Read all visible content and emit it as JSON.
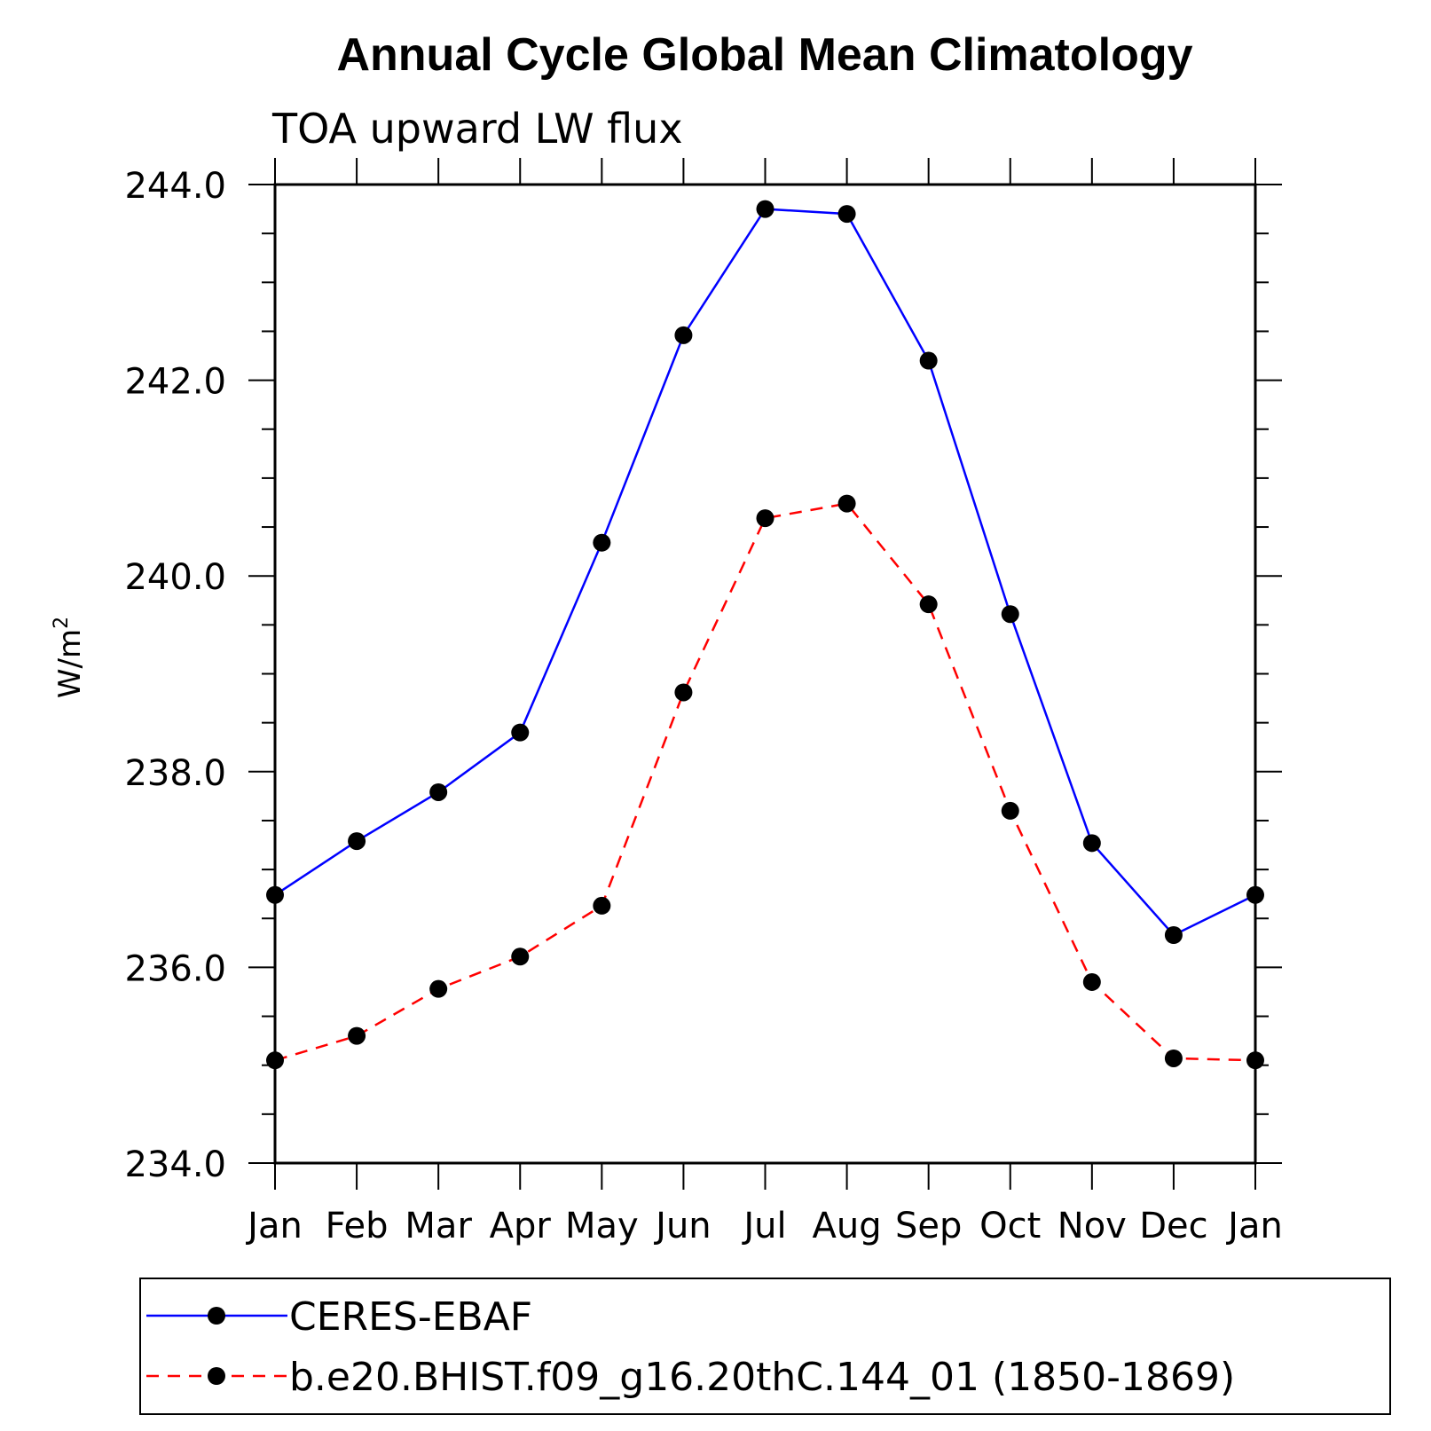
{
  "chart_data": {
    "type": "line",
    "title": "Annual Cycle Global Mean Climatology",
    "subtitle": "TOA upward LW flux",
    "xlabel": "",
    "ylabel": "W/m",
    "ylabel_sup": "2",
    "categories": [
      "Jan",
      "Feb",
      "Mar",
      "Apr",
      "May",
      "Jun",
      "Jul",
      "Aug",
      "Sep",
      "Oct",
      "Nov",
      "Dec",
      "Jan"
    ],
    "ylim": [
      234.0,
      244.0
    ],
    "yticks_major": [
      "234.0",
      "236.0",
      "238.0",
      "240.0",
      "242.0",
      "244.0"
    ],
    "ytick_values": [
      234.0,
      236.0,
      238.0,
      240.0,
      242.0,
      244.0
    ],
    "series": [
      {
        "name": "CERES-EBAF",
        "color": "#0000ff",
        "dash": "solid",
        "values": [
          236.74,
          237.29,
          237.79,
          238.4,
          240.34,
          242.46,
          243.75,
          243.7,
          242.2,
          239.61,
          237.27,
          236.33,
          236.74
        ]
      },
      {
        "name": "b.e20.BHIST.f09_g16.20thC.144_01 (1850-1869)",
        "color": "#ff0000",
        "dash": "dashed",
        "values": [
          235.05,
          235.3,
          235.78,
          236.11,
          236.63,
          238.81,
          240.59,
          240.74,
          239.71,
          237.6,
          235.85,
          235.07,
          235.05
        ]
      }
    ],
    "legend_position": "bottom"
  }
}
